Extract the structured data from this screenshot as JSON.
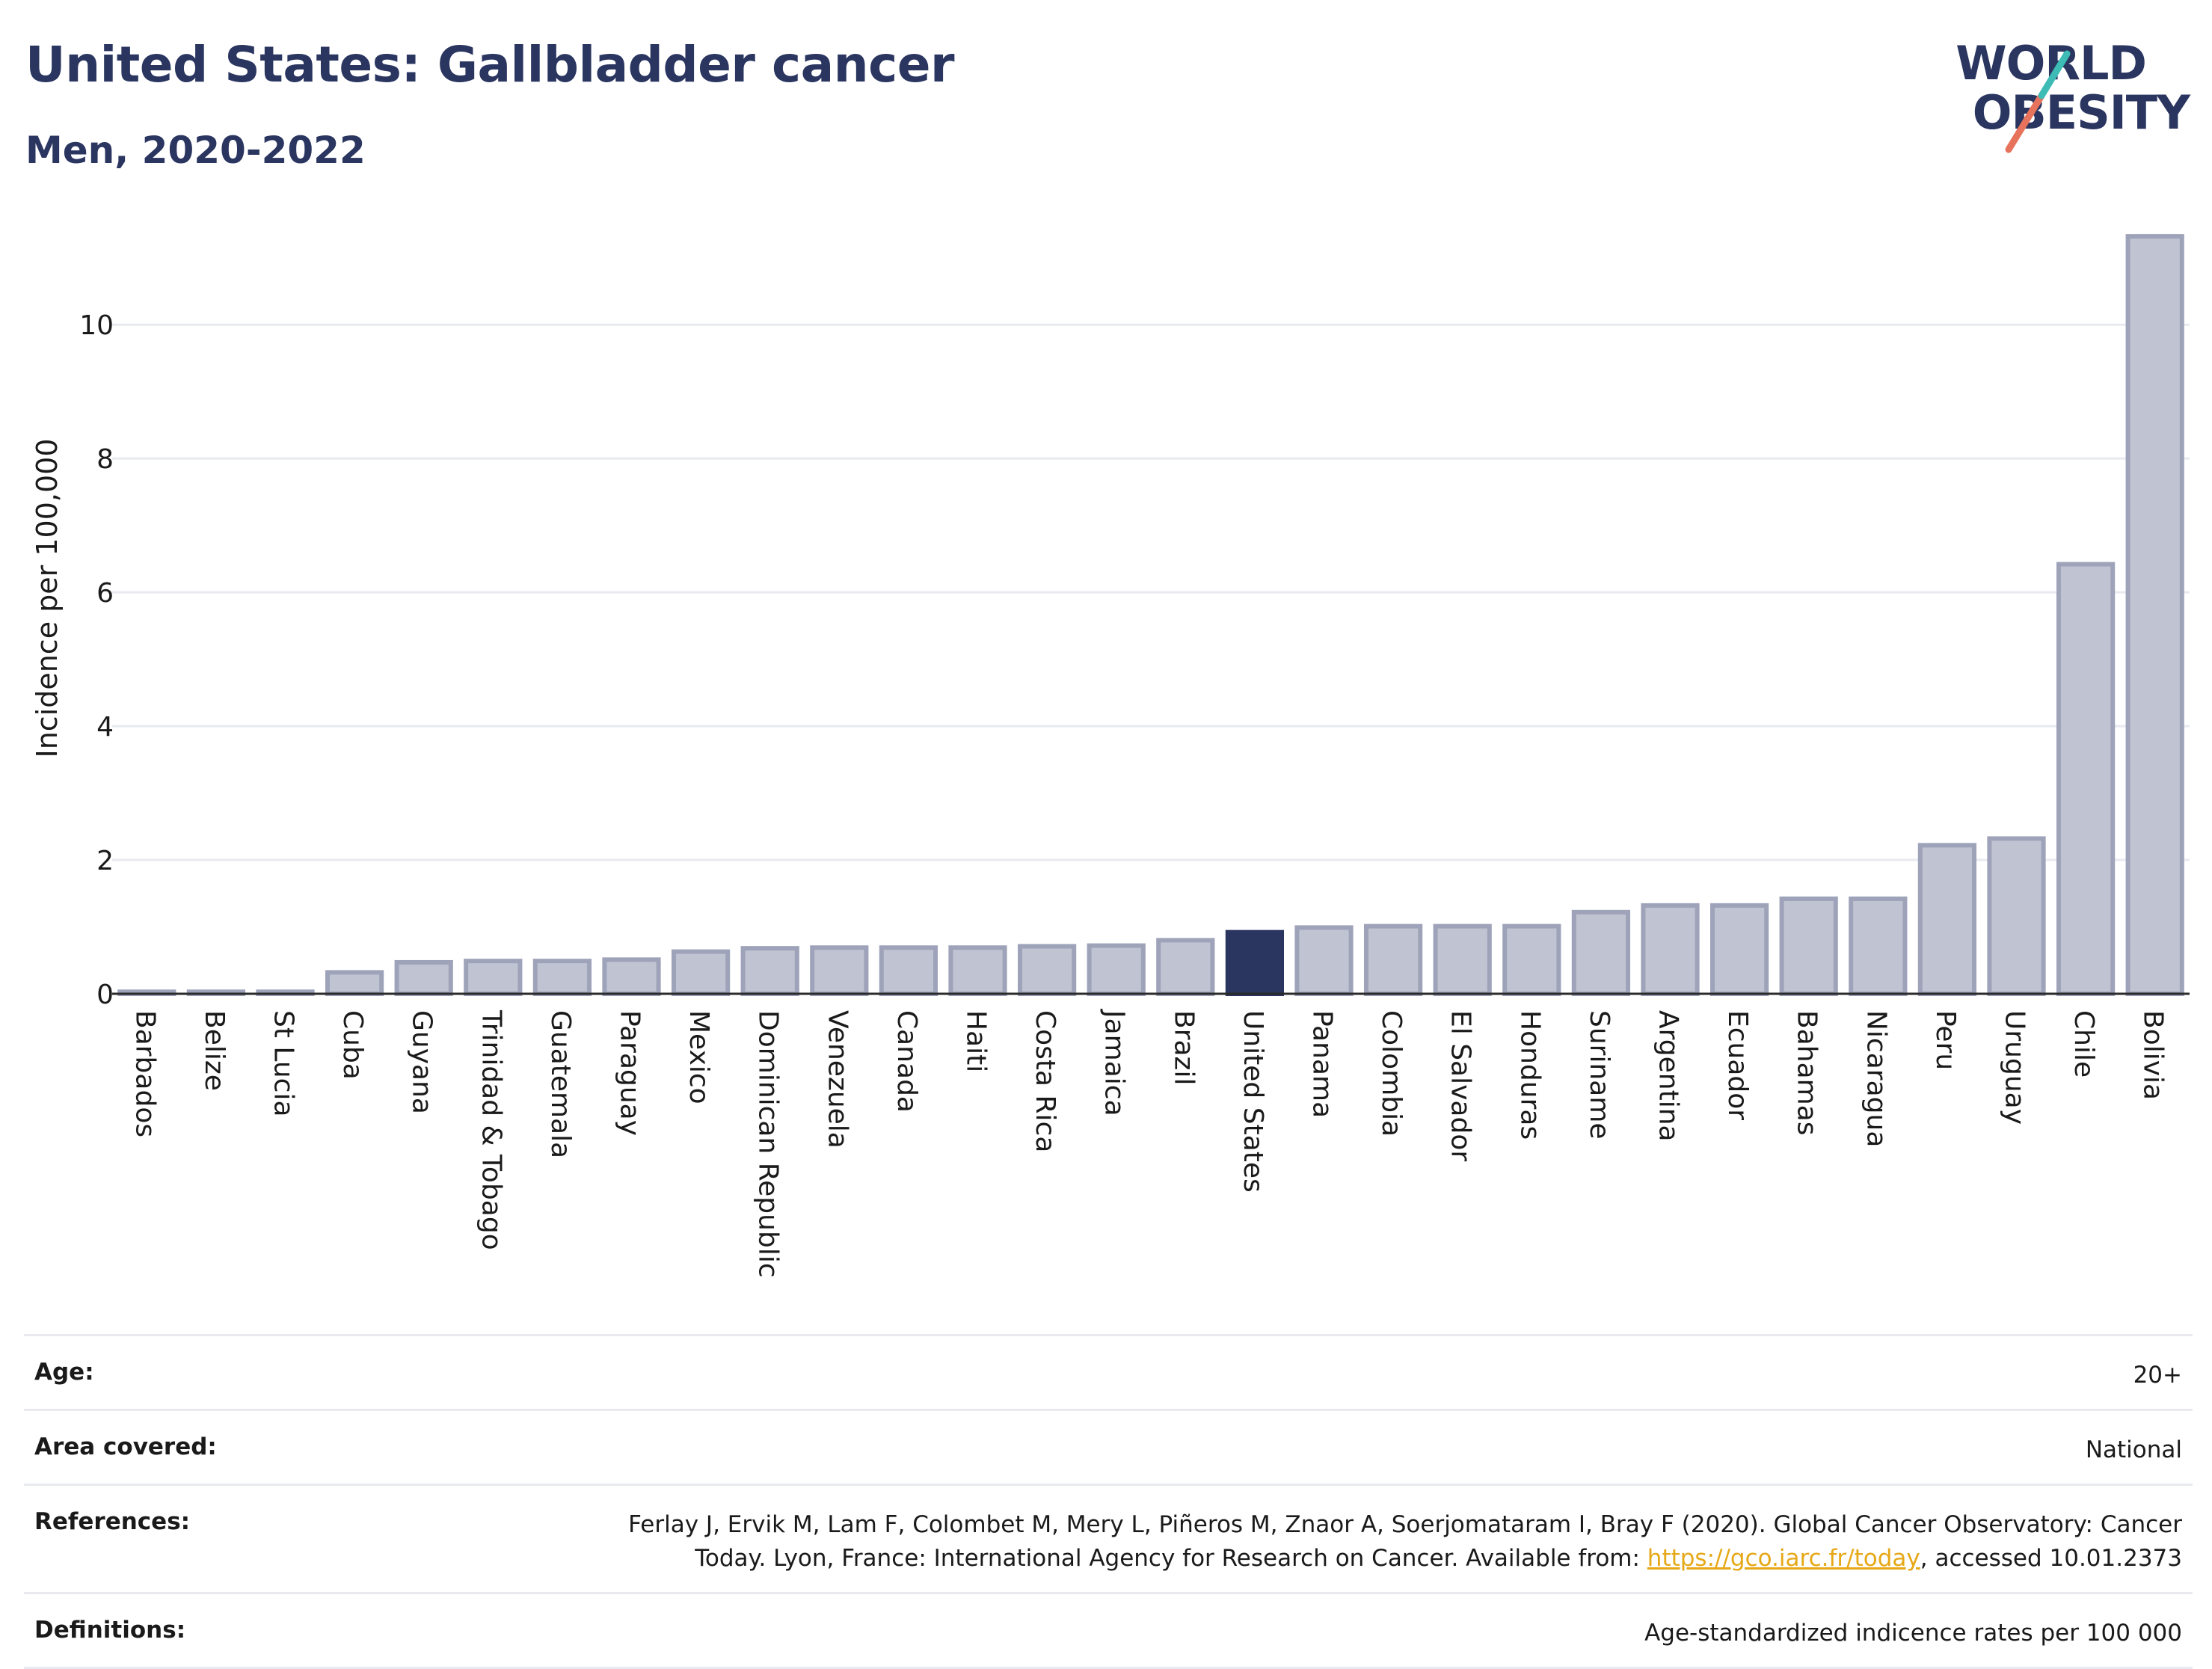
{
  "title": "United States: Gallbladder cancer",
  "subtitle": "Men, 2020-2022",
  "logo": {
    "line1": "WORLD",
    "line2": "OBESITY"
  },
  "colors": {
    "highlight": "#2a3560",
    "bar": "#c0c3d1",
    "bar_stroke": "#9ea3ba",
    "accent_teal": "#3dbcb5",
    "accent_coral": "#e8735c"
  },
  "chart_data": {
    "type": "bar",
    "ylabel": "Incidence per 100,000",
    "ylim": [
      0,
      11.5
    ],
    "yticks": [
      0,
      2,
      4,
      6,
      8,
      10
    ],
    "grid": true,
    "highlight": "United States",
    "categories": [
      "Barbados",
      "Belize",
      "St Lucia",
      "Cuba",
      "Guyana",
      "Trinidad & Tobago",
      "Guatemala",
      "Paraguay",
      "Mexico",
      "Dominican Republic",
      "Venezuela",
      "Canada",
      "Haiti",
      "Costa Rica",
      "Jamaica",
      "Brazil",
      "United States",
      "Panama",
      "Colombia",
      "El Salvador",
      "Honduras",
      "Suriname",
      "Argentina",
      "Ecuador",
      "Bahamas",
      "Nicaragua",
      "Peru",
      "Uruguay",
      "Chile",
      "Bolivia"
    ],
    "values": [
      0.03,
      0.03,
      0.03,
      0.32,
      0.47,
      0.49,
      0.49,
      0.51,
      0.63,
      0.68,
      0.69,
      0.69,
      0.69,
      0.71,
      0.72,
      0.8,
      0.92,
      0.99,
      1.01,
      1.01,
      1.01,
      1.22,
      1.32,
      1.32,
      1.42,
      1.42,
      2.22,
      2.32,
      6.42,
      11.32
    ]
  },
  "meta": [
    {
      "key": "Age:",
      "value": "20+"
    },
    {
      "key": "Area covered:",
      "value": "National"
    },
    {
      "key": "References:",
      "value_pre": "Ferlay J, Ervik M, Lam F, Colombet M, Mery L, Piñeros M, Znaor A, Soerjomataram I, Bray F (2020). Global Cancer Observatory: Cancer Today. Lyon, France: International Agency for Research on Cancer. Available from: ",
      "link": "https://gco.iarc.fr/today",
      "value_post": ", accessed 10.01.2373"
    },
    {
      "key": "Definitions:",
      "value": "Age-standardized indicence rates per 100 000"
    }
  ]
}
